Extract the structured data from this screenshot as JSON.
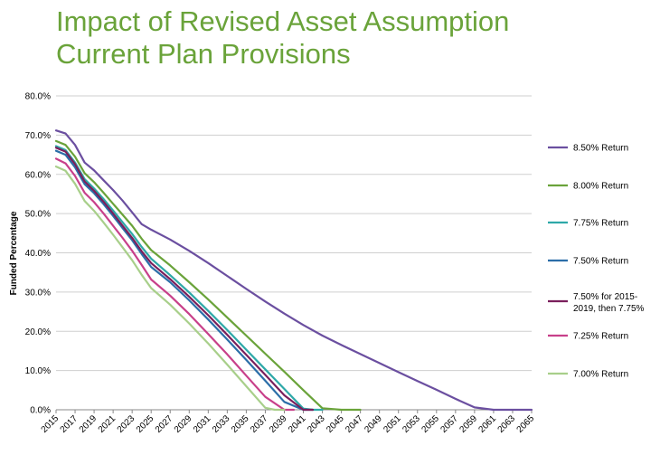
{
  "chart_data": {
    "type": "line",
    "title": "Impact of Revised Asset Assumption",
    "subtitle": "Current Plan Provisions",
    "xlabel": "",
    "ylabel": "Funded Percentage",
    "xlim": [
      2015,
      2065
    ],
    "ylim": [
      0,
      80
    ],
    "ytick_labels": [
      "0.0%",
      "10.0%",
      "20.0%",
      "30.0%",
      "40.0%",
      "50.0%",
      "60.0%",
      "70.0%",
      "80.0%"
    ],
    "xtick_labels": [
      "2015",
      "2017",
      "2019",
      "2021",
      "2023",
      "2025",
      "2027",
      "2029",
      "2031",
      "2033",
      "2035",
      "2037",
      "2039",
      "2041",
      "2043",
      "2045",
      "2047",
      "2049",
      "2051",
      "2053",
      "2055",
      "2057",
      "2059",
      "2061",
      "2063",
      "2065"
    ],
    "grid": "horizontal",
    "legend_position": "right",
    "series": [
      {
        "name": "8.50% Return",
        "color": "#6b4fa0",
        "x": [
          2015,
          2016,
          2017,
          2018,
          2019,
          2020,
          2021,
          2022,
          2023,
          2024,
          2025,
          2027,
          2029,
          2031,
          2033,
          2035,
          2037,
          2039,
          2041,
          2043,
          2045,
          2047,
          2049,
          2051,
          2053,
          2055,
          2057,
          2059,
          2061,
          2063,
          2064,
          2065
        ],
        "y": [
          71.2,
          70.4,
          67.5,
          63.0,
          61.0,
          58.5,
          56.0,
          53.3,
          50.3,
          47.3,
          45.9,
          43.4,
          40.5,
          37.4,
          34.1,
          30.8,
          27.6,
          24.5,
          21.6,
          18.9,
          16.5,
          14.2,
          11.9,
          9.6,
          7.3,
          5.1,
          2.8,
          0.6,
          0,
          0,
          0,
          0
        ]
      },
      {
        "name": "8.00% Return",
        "color": "#6aa33a",
        "x": [
          2015,
          2016,
          2017,
          2018,
          2019,
          2020,
          2021,
          2022,
          2023,
          2024,
          2025,
          2027,
          2029,
          2031,
          2033,
          2035,
          2037,
          2039,
          2041,
          2043,
          2045,
          2046,
          2047
        ],
        "y": [
          68.5,
          67.5,
          64.5,
          60.3,
          58.0,
          55.3,
          52.5,
          49.7,
          46.9,
          43.6,
          40.7,
          36.8,
          32.5,
          28.1,
          23.5,
          18.9,
          14.3,
          9.7,
          5.0,
          0.4,
          0,
          0,
          0
        ]
      },
      {
        "name": "7.75% Return",
        "color": "#2ea8a8",
        "x": [
          2015,
          2016,
          2017,
          2018,
          2019,
          2020,
          2021,
          2022,
          2023,
          2024,
          2025,
          2027,
          2029,
          2031,
          2033,
          2035,
          2037,
          2039,
          2041,
          2042,
          2043
        ],
        "y": [
          67.2,
          66.2,
          63.0,
          58.8,
          56.4,
          53.7,
          50.8,
          47.8,
          44.8,
          41.5,
          38.5,
          34.3,
          29.9,
          25.2,
          20.3,
          15.3,
          10.3,
          5.3,
          0.3,
          0,
          0
        ]
      },
      {
        "name": "7.50% Return",
        "color": "#2b6ea8",
        "x": [
          2015,
          2016,
          2017,
          2018,
          2019,
          2020,
          2021,
          2022,
          2023,
          2024,
          2025,
          2027,
          2029,
          2031,
          2033,
          2035,
          2037,
          2039,
          2041,
          2042
        ],
        "y": [
          66.0,
          65.0,
          61.8,
          57.5,
          55.2,
          52.4,
          49.4,
          46.3,
          43.2,
          39.7,
          36.4,
          32.5,
          27.9,
          23.0,
          17.9,
          12.7,
          7.4,
          2.0,
          0,
          0
        ]
      },
      {
        "name": "7.50% for 2015-2019, then 7.75%",
        "color": "#7a1f5c",
        "x": [
          2015,
          2016,
          2017,
          2018,
          2019,
          2020,
          2021,
          2022,
          2023,
          2024,
          2025,
          2027,
          2029,
          2031,
          2033,
          2035,
          2037,
          2039,
          2041,
          2042
        ],
        "y": [
          66.8,
          65.8,
          62.6,
          58.2,
          55.8,
          53.0,
          50.0,
          46.9,
          43.8,
          40.4,
          37.4,
          33.3,
          28.8,
          24.1,
          19.1,
          14.0,
          8.9,
          3.7,
          0,
          0
        ]
      },
      {
        "name": "7.25% Return",
        "color": "#c8408a",
        "x": [
          2015,
          2016,
          2017,
          2018,
          2019,
          2020,
          2021,
          2022,
          2023,
          2024,
          2025,
          2027,
          2029,
          2031,
          2033,
          2035,
          2037,
          2039,
          2040
        ],
        "y": [
          64.0,
          62.8,
          59.6,
          55.3,
          52.9,
          50.0,
          46.9,
          43.8,
          40.5,
          36.9,
          33.2,
          29.1,
          24.4,
          19.3,
          14.1,
          8.7,
          3.3,
          0,
          0
        ]
      },
      {
        "name": "7.00% Return",
        "color": "#a8cf8a",
        "x": [
          2015,
          2016,
          2017,
          2018,
          2019,
          2020,
          2021,
          2022,
          2023,
          2024,
          2025,
          2027,
          2029,
          2031,
          2033,
          2035,
          2037,
          2038,
          2039
        ],
        "y": [
          62.0,
          60.9,
          57.6,
          53.2,
          50.7,
          47.7,
          44.6,
          41.4,
          38.1,
          34.4,
          31.0,
          26.8,
          22.0,
          16.9,
          11.5,
          6.0,
          0.5,
          0,
          0
        ]
      }
    ]
  }
}
